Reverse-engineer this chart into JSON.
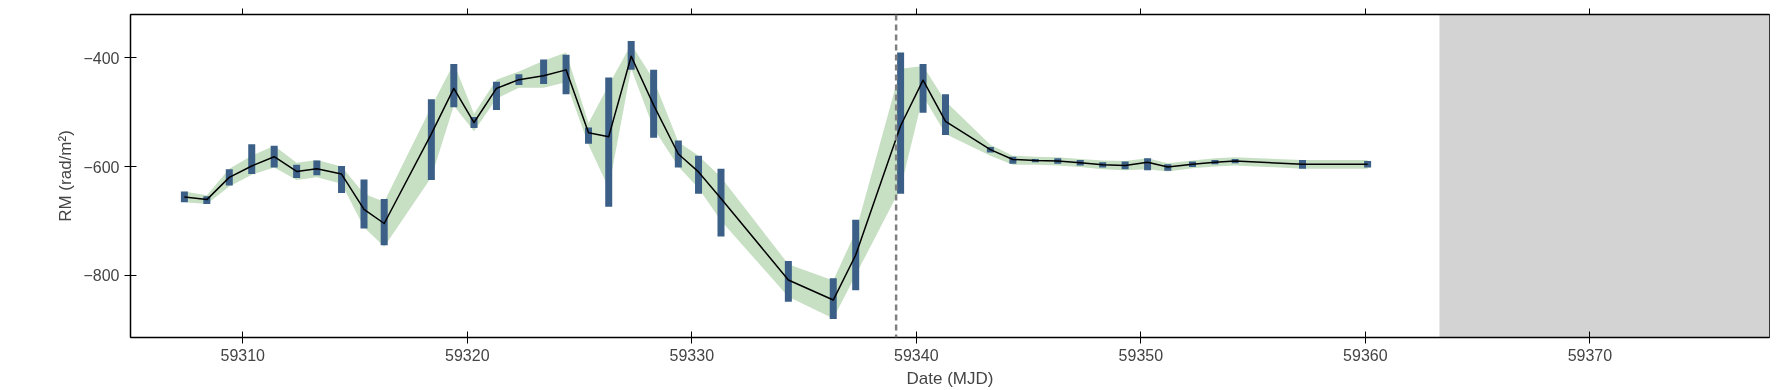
{
  "chart_data": {
    "type": "line",
    "xlabel": "Date (MJD)",
    "ylabel": "RM (rad/m²)",
    "xlim": [
      59305,
      59378
    ],
    "xticks": [
      59310,
      59320,
      59330,
      59340,
      59350,
      59360,
      59370
    ],
    "ylim": [
      -915,
      -320
    ],
    "yticks": [
      -800,
      -600,
      -400
    ],
    "grid": false,
    "marker": "none",
    "line_style": "solid",
    "series": [
      {
        "color": "#000000",
        "x": [
          59307.4,
          59308.4,
          59309.4,
          59310.4,
          59311.4,
          59312.4,
          59313.3,
          59314.4,
          59315.4,
          59316.3,
          59318.4,
          59319.4,
          59320.3,
          59321.3,
          59322.3,
          59323.4,
          59324.4,
          59325.4,
          59326.3,
          59327.3,
          59328.3,
          59329.4,
          59330.3,
          59331.3,
          59334.3,
          59336.3,
          59337.3,
          59339.3,
          59340.3,
          59341.3,
          59343.3,
          59344.3,
          59345.3,
          59346.3,
          59347.3,
          59348.3,
          59349.3,
          59350.3,
          59351.2,
          59352.3,
          59353.3,
          59354.2,
          59357.2,
          59360.1
        ],
        "values": [
          -656,
          -661,
          -620,
          -599,
          -582,
          -609,
          -604,
          -614,
          -679,
          -705,
          -540,
          -456,
          -519,
          -456,
          -440,
          -433,
          -422,
          -538,
          -545,
          -397,
          -487,
          -577,
          -610,
          -659,
          -809,
          -846,
          -763,
          -525,
          -441,
          -517,
          -569,
          -587,
          -589,
          -590,
          -593,
          -597,
          -598,
          -592,
          -601,
          -596,
          -592,
          -590,
          -596,
          -596
        ],
        "errors": [
          [
            -666,
            -646
          ],
          [
            -669,
            -655
          ],
          [
            -635,
            -605
          ],
          [
            -614,
            -559
          ],
          [
            -602,
            -562
          ],
          [
            -621,
            -597
          ],
          [
            -616,
            -589
          ],
          [
            -649,
            -599
          ],
          [
            -714,
            -624
          ],
          [
            -745,
            -660
          ],
          [
            -625,
            -476
          ],
          [
            -491,
            -411
          ],
          [
            -529,
            -509
          ],
          [
            -496,
            -444
          ],
          [
            -450,
            -430
          ],
          [
            -448,
            -403
          ],
          [
            -467,
            -394
          ],
          [
            -558,
            -528
          ],
          [
            -674,
            -436
          ],
          [
            -422,
            -369
          ],
          [
            -547,
            -422
          ],
          [
            -602,
            -552
          ],
          [
            -650,
            -580
          ],
          [
            -729,
            -604
          ],
          [
            -849,
            -774
          ],
          [
            -881,
            -806
          ],
          [
            -828,
            -698
          ],
          [
            -650,
            -390
          ],
          [
            -501,
            -411
          ],
          [
            -542,
            -467
          ],
          [
            -574,
            -564
          ],
          [
            -595,
            -582
          ],
          [
            -592,
            -586
          ],
          [
            -595,
            -585
          ],
          [
            -598,
            -588
          ],
          [
            -602,
            -592
          ],
          [
            -605,
            -591
          ],
          [
            -607,
            -585
          ],
          [
            -608,
            -596
          ],
          [
            -601,
            -591
          ],
          [
            -596,
            -588
          ],
          [
            -594,
            -586
          ],
          [
            -604,
            -588
          ],
          [
            -602,
            -590
          ]
        ],
        "lower": [
          -666,
          -669,
          -637,
          -615,
          -602,
          -625,
          -620,
          -632,
          -712,
          -748,
          -620,
          -488,
          -535,
          -475,
          -455,
          -455,
          -445,
          -560,
          -640,
          -420,
          -530,
          -600,
          -640,
          -700,
          -840,
          -880,
          -800,
          -640,
          -470,
          -540,
          -580,
          -597,
          -597,
          -598,
          -601,
          -605,
          -607,
          -605,
          -609,
          -603,
          -600,
          -598,
          -604,
          -604
        ],
        "upper": [
          -646,
          -653,
          -604,
          -580,
          -562,
          -593,
          -588,
          -600,
          -650,
          -665,
          -490,
          -410,
          -503,
          -440,
          -425,
          -405,
          -390,
          -520,
          -450,
          -375,
          -440,
          -555,
          -580,
          -620,
          -780,
          -810,
          -720,
          -420,
          -415,
          -480,
          -560,
          -580,
          -582,
          -583,
          -586,
          -589,
          -590,
          -585,
          -594,
          -589,
          -585,
          -583,
          -588,
          -588
        ]
      }
    ],
    "ref_lines": [
      {
        "axis": "x",
        "value": 59339.1,
        "color": "#808080",
        "line_style": "dashed"
      }
    ],
    "bands": [
      {
        "axis": "x",
        "from": 59363.3,
        "to": 59378,
        "color": "#d3d3d3"
      }
    ]
  }
}
